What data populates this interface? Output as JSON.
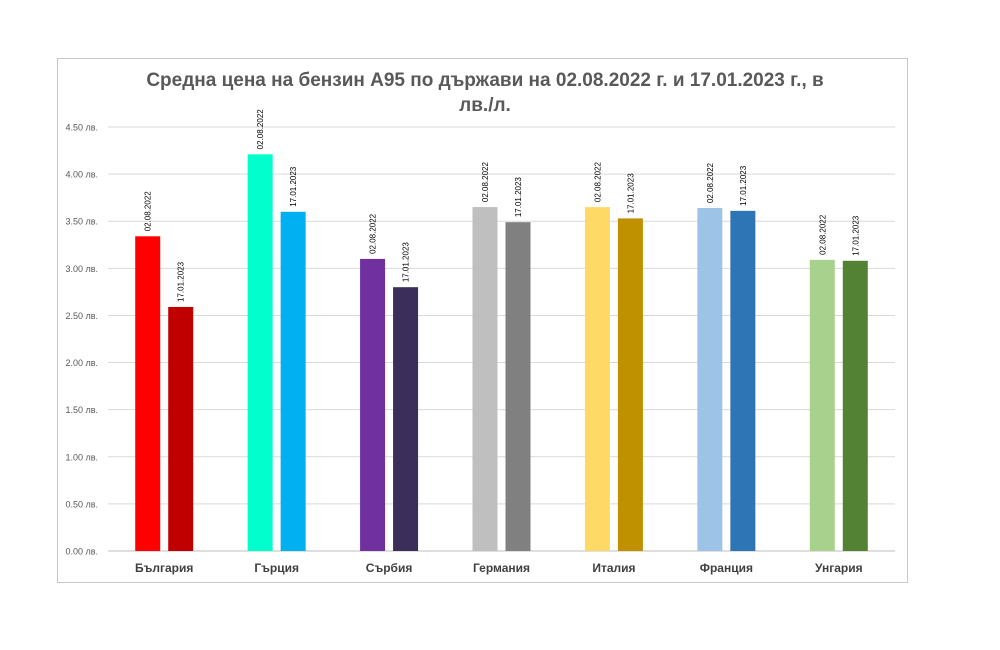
{
  "chart_data": {
    "type": "bar",
    "title": "Средна цена на бензин А95 по държави на 02.08.2022 г. и 17.01.2023 г., в лв./л.",
    "xlabel": "",
    "ylabel": "",
    "ylim": [
      0,
      4.5
    ],
    "yticks": [
      "0.00 лв.",
      "0.50 лв.",
      "1.00 лв.",
      "1.50 лв.",
      "2.00 лв.",
      "2.50 лв.",
      "3.00 лв.",
      "3.50 лв.",
      "4.00 лв.",
      "4.50 лв."
    ],
    "grid": true,
    "legend": "none",
    "categories": [
      "България",
      "Гърция",
      "Сърбия",
      "Германия",
      "Италия",
      "Франция",
      "Унгария"
    ],
    "series": [
      {
        "name": "02.08.2022",
        "values": [
          3.34,
          4.21,
          3.1,
          3.65,
          3.65,
          3.64,
          3.09
        ],
        "colors": [
          "#ff0000",
          "#00ffcc",
          "#7030a0",
          "#bfbfbf",
          "#ffd966",
          "#9dc3e6",
          "#a9d18e"
        ]
      },
      {
        "name": "17.01.2023",
        "values": [
          2.59,
          3.6,
          2.8,
          3.49,
          3.53,
          3.61,
          3.08
        ],
        "colors": [
          "#c00000",
          "#00b0f0",
          "#3b2e5a",
          "#808080",
          "#bf9000",
          "#2e75b6",
          "#548235"
        ]
      }
    ]
  }
}
